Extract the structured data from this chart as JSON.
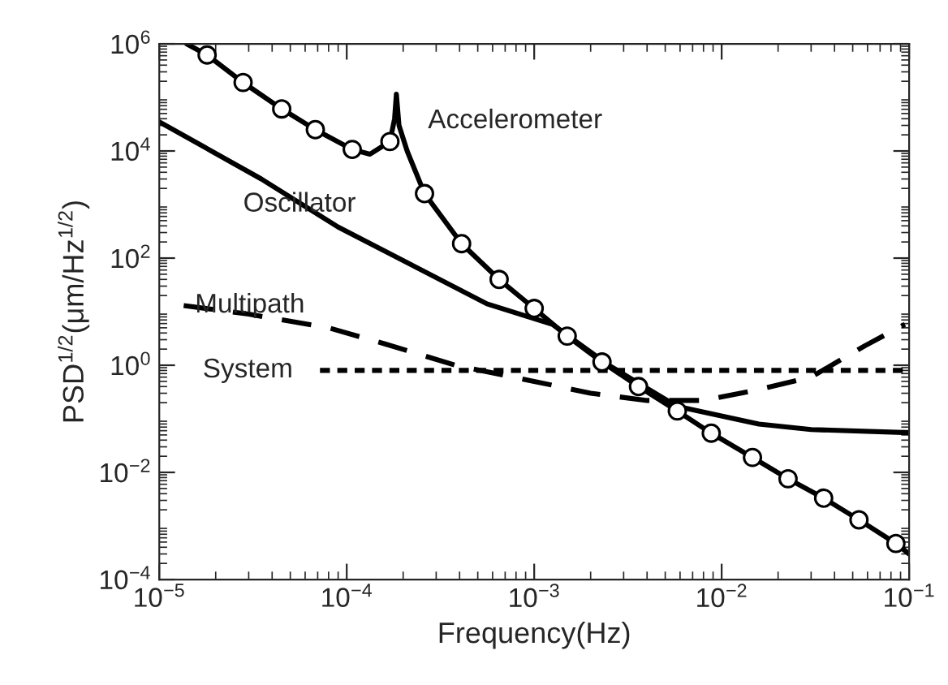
{
  "chart_data": {
    "type": "line",
    "xlabel": "Frequency(Hz)",
    "ylabel": "PSD$^{1/2}$(μm/Hz$^{1/2}$)",
    "log": "xy",
    "grid": false,
    "legend": false,
    "xlim": [
      1e-05,
      0.1
    ],
    "ylim": [
      0.0001,
      1000000.0
    ],
    "xticks": [
      {
        "value": 1e-05,
        "label": "10$^{−5}$"
      },
      {
        "value": 0.0001,
        "label": "10$^{−4}$"
      },
      {
        "value": 0.001,
        "label": "10$^{−3}$"
      },
      {
        "value": 0.01,
        "label": "10$^{−2}$"
      },
      {
        "value": 0.1,
        "label": "10$^{−1}$"
      }
    ],
    "yticks": [
      {
        "value": 0.0001,
        "label": "10$^{−4}$"
      },
      {
        "value": 0.01,
        "label": "10$^{−2}$"
      },
      {
        "value": 1,
        "label": "10$^{0}$"
      },
      {
        "value": 100,
        "label": "10$^{2}$"
      },
      {
        "value": 10000,
        "label": "10$^{4}$"
      },
      {
        "value": 1000000,
        "label": "10$^{6}$"
      }
    ],
    "series": [
      {
        "color": "#000000",
        "line_style": "solid",
        "x": [
          1.4e-05,
          1.8e-05,
          2.8e-05,
          4.5e-05,
          6.8e-05,
          0.000107,
          0.000133,
          0.00017,
          0.00018,
          0.000184,
          0.00019,
          0.00021,
          0.00026,
          0.00041,
          0.00065,
          0.001,
          0.0015,
          0.0023,
          0.0036,
          0.0058,
          0.0088,
          0.0146,
          0.0226,
          0.035,
          0.054,
          0.085,
          0.1
        ],
        "values": [
          1000000,
          620000,
          190000,
          61000,
          25000,
          10700,
          8700,
          15000,
          40000,
          115000,
          30000,
          10000,
          1600,
          186,
          40,
          11.5,
          3.5,
          1.15,
          0.4,
          0.14,
          0.054,
          0.019,
          0.0076,
          0.0033,
          0.0013,
          0.00047,
          0.0003
        ]
      },
      {
        "type": "scatter",
        "color": "#000000",
        "marker": "circle",
        "x": [
          1.8e-05,
          2.8e-05,
          4.5e-05,
          6.8e-05,
          0.000107,
          0.00017,
          0.00026,
          0.00041,
          0.00065,
          0.001,
          0.0015,
          0.0023,
          0.0036,
          0.0058,
          0.0088,
          0.0146,
          0.0226,
          0.035,
          0.054,
          0.085
        ],
        "values": [
          620000,
          190000,
          61000,
          25000,
          10700,
          15000,
          1600,
          186,
          40,
          11.5,
          3.5,
          1.15,
          0.4,
          0.14,
          0.054,
          0.019,
          0.0076,
          0.0033,
          0.0013,
          0.00047
        ]
      },
      {
        "color": "#000000",
        "line_style": "solid",
        "x": [
          1e-05,
          3.5e-05,
          9e-05,
          0.00056,
          0.00125,
          0.0025,
          0.0058,
          0.0158,
          0.03,
          0.1
        ],
        "values": [
          35000,
          3000,
          380,
          14,
          5.8,
          1.0,
          0.17,
          0.08,
          0.063,
          0.055
        ]
      },
      {
        "color": "#000000",
        "line_style": "dashed",
        "x": [
          1.35e-05,
          3e-05,
          8e-05,
          0.00016,
          0.00038,
          0.001,
          0.002,
          0.004,
          0.008,
          0.0157,
          0.03,
          0.058,
          0.095
        ],
        "values": [
          13,
          9,
          5,
          2.5,
          1.0,
          0.5,
          0.3,
          0.22,
          0.22,
          0.35,
          0.6,
          2.3,
          5.8
        ]
      },
      {
        "color": "#000000",
        "line_style": "dotted",
        "x": [
          7.2e-05,
          0.1
        ],
        "values": [
          0.8,
          0.8
        ]
      }
    ],
    "annotations": [
      {
        "text": "Accelerometer",
        "x": 0.000184,
        "y": 115000
      },
      {
        "text": "Oscillator",
        "x": 5.6e-05,
        "y": 1000
      },
      {
        "text": "Multipath",
        "x": 1.35e-05,
        "y": 13
      },
      {
        "text": "System",
        "x": 7.2e-05,
        "y": 0.8
      }
    ]
  }
}
